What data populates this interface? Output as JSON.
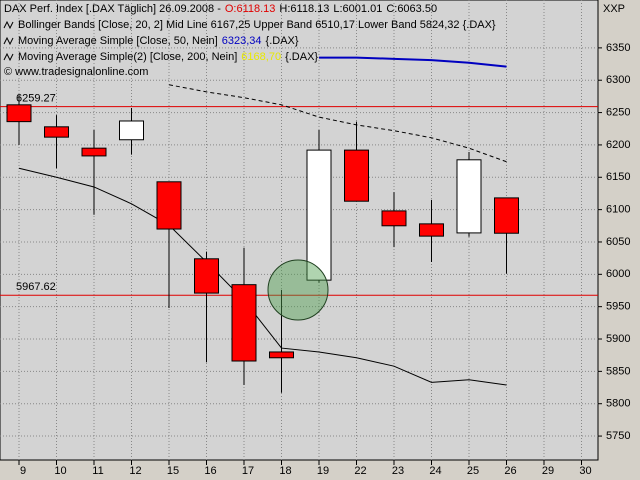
{
  "chart_data": {
    "type": "candlestick",
    "header": {
      "title": "DAX Perf. Index [.DAX Täglich] 26.09.2008 -",
      "ohlc": [
        "O:6118.13",
        "H:6118.13",
        "L:6001.01",
        "C:6063.50"
      ]
    },
    "corner_label": "XXP",
    "copyright": "© www.tradesignalonline.com",
    "categories": [
      "9",
      "10",
      "11",
      "12",
      "15",
      "16",
      "17",
      "18",
      "19",
      "22",
      "23",
      "24",
      "25",
      "26",
      "29",
      "30"
    ],
    "open": [
      6262,
      6228,
      6195,
      6208,
      6143,
      6024,
      5984,
      5880,
      5991,
      6192,
      6098,
      6078,
      6064,
      6118.13,
      null,
      null
    ],
    "high": [
      6277,
      6246,
      6223,
      6257,
      6143,
      6035,
      6041,
      5976,
      6223,
      6236,
      6127,
      6115,
      6189,
      6118.13,
      null,
      null
    ],
    "low": [
      6200,
      6164,
      6092,
      6185,
      5948,
      5864,
      5829,
      5817,
      5987,
      6113,
      6042,
      6019,
      6058,
      6001.01,
      null,
      null
    ],
    "close": [
      6236,
      6212,
      6183,
      6237,
      6070,
      5971,
      5866,
      5871,
      6192,
      6113,
      6075,
      6059,
      6177,
      6063.5,
      null,
      null
    ],
    "up_color": "#ffffff",
    "down_color": "#ff0000",
    "series": [
      {
        "name": "Bollinger Bands [Close, 20, 2] Mid Line 6167,25 Upper Band 6510,17 Lower Band 5824,32 {.DAX}",
        "color": "#000000",
        "dash": false,
        "values": [
          6164,
          6150,
          6135,
          6109,
          6076,
          6019,
          5960,
          5886,
          5880,
          5871,
          5858,
          5833,
          5837,
          5829,
          null,
          null
        ]
      },
      {
        "name": "Moving Average Simple [Close, 50, Nein]",
        "value_label": "6323,34",
        "suffix": "{.DAX}",
        "label_color": "#0000c0",
        "color": "#0000c0",
        "dash": false,
        "values": [
          null,
          null,
          null,
          null,
          null,
          null,
          null,
          null,
          6335,
          6335,
          6333,
          6331,
          6327,
          6321,
          null,
          null
        ]
      },
      {
        "name": "Moving Average Simple(2) [Close, 200, Nein]",
        "value_label": "6168,70",
        "suffix": "{.DAX}",
        "label_color": "#e8e800",
        "color": "#000000",
        "dash": true,
        "values": [
          null,
          null,
          null,
          null,
          6293,
          6282,
          6273,
          6262,
          6243,
          6231,
          6222,
          6211,
          6195,
          6174,
          null,
          null
        ]
      }
    ],
    "hlines": [
      6259.27,
      5967.62
    ],
    "hline_color": "#e00000",
    "ylim": [
      5713,
      6424
    ],
    "yticks": [
      5750,
      5800,
      5850,
      5900,
      5950,
      6000,
      6050,
      6100,
      6150,
      6200,
      6250,
      6300,
      6350
    ],
    "grid": true
  }
}
